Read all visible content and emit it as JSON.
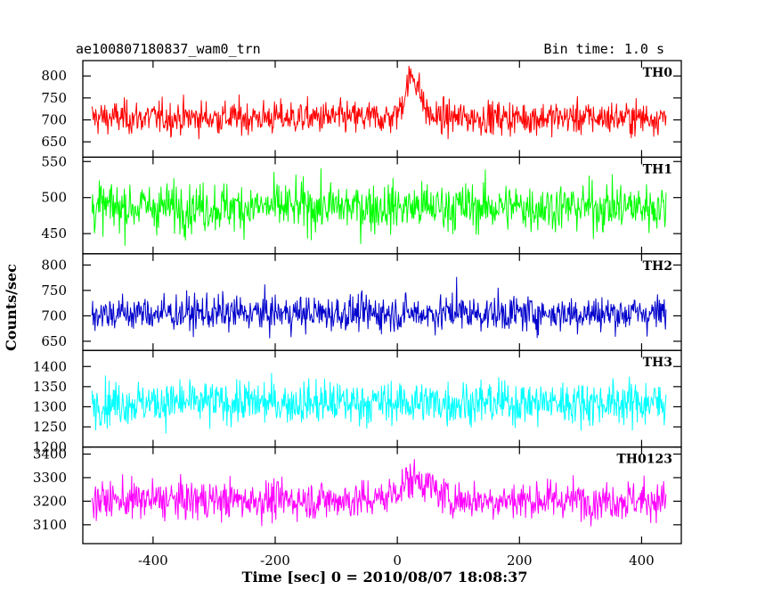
{
  "header": {
    "left_title": "ae100807180837_wam0_trn",
    "right_title": "Bin time: 1.0 s"
  },
  "chart_data": {
    "type": "line",
    "title": "ae100807180837_wam0_trn",
    "subtitle": "Bin time: 1.0 s",
    "xlabel": "Time [sec] 0 = 2010/08/07 18:08:37",
    "ylabel": "Counts/sec",
    "xlim": [
      -515,
      465
    ],
    "x_ticks": [
      -400,
      -200,
      0,
      200,
      400
    ],
    "x_range_data": [
      -500,
      440
    ],
    "bin_time_s": 1.0,
    "panels": [
      {
        "name": "TH0",
        "color": "#ff0000",
        "ylim": [
          615,
          835
        ],
        "y_ticks": [
          650,
          700,
          750,
          800
        ],
        "mean": 705,
        "noise_sd": 27,
        "features": [
          {
            "type": "peak",
            "center": 25,
            "width": 12,
            "amplitude": 95
          }
        ]
      },
      {
        "name": "TH1",
        "color": "#00ff00",
        "ylim": [
          422,
          556
        ],
        "y_ticks": [
          450,
          500,
          550
        ],
        "mean": 487,
        "noise_sd": 24,
        "features": []
      },
      {
        "name": "TH2",
        "color": "#0000cc",
        "ylim": [
          632,
          822
        ],
        "y_ticks": [
          650,
          700,
          750,
          800
        ],
        "mean": 705,
        "noise_sd": 25,
        "features": [
          {
            "type": "spike",
            "center": 97,
            "amplitude": 105
          }
        ]
      },
      {
        "name": "TH3",
        "color": "#00ffff",
        "ylim": [
          1200,
          1440
        ],
        "y_ticks": [
          1200,
          1250,
          1300,
          1350,
          1400
        ],
        "mean": 1310,
        "noise_sd": 38,
        "features": []
      },
      {
        "name": "TH0123",
        "color": "#ff00ff",
        "ylim": [
          3020,
          3430
        ],
        "y_ticks": [
          3100,
          3200,
          3300,
          3400
        ],
        "mean": 3205,
        "noise_sd": 58,
        "features": [
          {
            "type": "bump",
            "center": 30,
            "width": 25,
            "amplitude": 90
          }
        ]
      }
    ]
  }
}
